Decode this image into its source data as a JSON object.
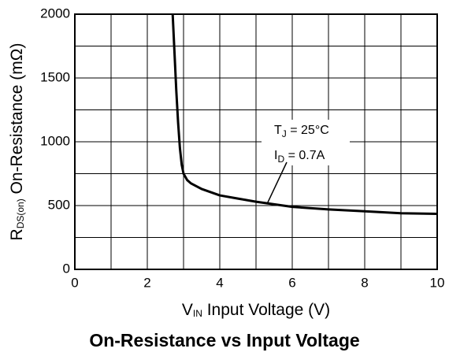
{
  "chart_data": {
    "type": "line",
    "title": "On-Resistance vs Input Voltage",
    "x_label": {
      "main": "V",
      "sub": "IN",
      "rest": "  Input Voltage (V)"
    },
    "y_label": {
      "main": "R",
      "sub": "DS(on)",
      "rest": " On-Resistance (mΩ)"
    },
    "annotations": [
      {
        "main": "T",
        "sub": "J",
        "rest": " = 25°C"
      },
      {
        "main": "I",
        "sub": "D",
        "rest": " = 0.7A"
      }
    ],
    "xlim": [
      0,
      10
    ],
    "ylim": [
      0,
      2000
    ],
    "xticks": [
      0,
      2,
      4,
      6,
      8,
      10
    ],
    "yticks": [
      0,
      500,
      1000,
      1500,
      2000
    ],
    "x_minor_ticks": [
      1,
      3,
      5,
      7,
      9
    ],
    "y_minor_ticks": [
      250,
      750,
      1250,
      1750
    ],
    "grid": true,
    "series": [
      {
        "name": "RDS(on)",
        "color": "#000000",
        "x": [
          2.7,
          2.75,
          2.8,
          2.85,
          2.9,
          2.95,
          3.0,
          3.1,
          3.2,
          3.5,
          4.0,
          4.5,
          5.0,
          6.0,
          7.0,
          8.0,
          9.0,
          10.0
        ],
        "values": [
          2000,
          1700,
          1400,
          1150,
          950,
          820,
          750,
          700,
          675,
          630,
          580,
          555,
          530,
          490,
          470,
          455,
          440,
          435
        ]
      }
    ]
  }
}
